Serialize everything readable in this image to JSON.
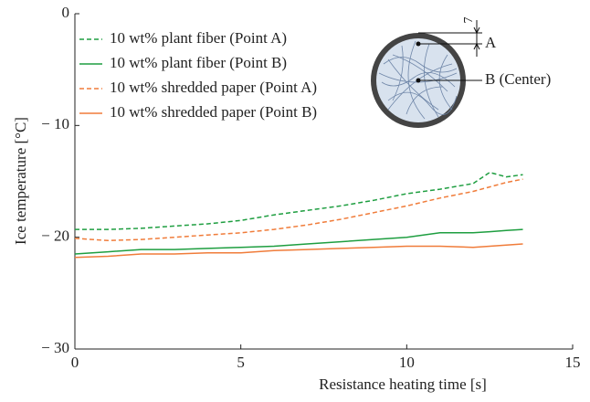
{
  "chart_data": {
    "type": "line",
    "xlabel": "Resistance heating time [s]",
    "ylabel": "Ice temperature [°C]",
    "x": [
      0,
      1,
      2,
      3,
      4,
      5,
      6,
      7,
      8,
      9,
      10,
      11,
      12,
      12.5,
      13,
      13.5
    ],
    "series": [
      {
        "name": "10 wt% plant fiber (Point A)",
        "color": "#1e9e40",
        "dashed": true,
        "values": [
          -19.3,
          -19.3,
          -19.2,
          -19.0,
          -18.8,
          -18.5,
          -18.0,
          -17.6,
          -17.2,
          -16.7,
          -16.1,
          -15.7,
          -15.2,
          -14.2,
          -14.6,
          -14.4
        ]
      },
      {
        "name": "10 wt% plant fiber (Point B)",
        "color": "#1e9e40",
        "dashed": false,
        "values": [
          -21.5,
          -21.3,
          -21.1,
          -21.1,
          -21.0,
          -20.9,
          -20.8,
          -20.6,
          -20.4,
          -20.2,
          -20.0,
          -19.6,
          -19.6,
          -19.5,
          -19.4,
          -19.3
        ]
      },
      {
        "name": "10 wt% shredded paper (Point A)",
        "color": "#f07c3a",
        "dashed": true,
        "values": [
          -20.1,
          -20.3,
          -20.2,
          -20.0,
          -19.8,
          -19.6,
          -19.3,
          -18.9,
          -18.4,
          -17.8,
          -17.2,
          -16.5,
          -15.9,
          -15.5,
          -15.1,
          -14.8
        ]
      },
      {
        "name": "10 wt% shredded paper (Point B)",
        "color": "#f07c3a",
        "dashed": false,
        "values": [
          -21.8,
          -21.7,
          -21.5,
          -21.5,
          -21.4,
          -21.4,
          -21.2,
          -21.1,
          -21.0,
          -20.9,
          -20.8,
          -20.8,
          -20.9,
          -20.8,
          -20.7,
          -20.6
        ]
      }
    ],
    "xlim": [
      0,
      15
    ],
    "xticks": [
      0,
      5,
      10,
      15
    ],
    "ylim": [
      -30,
      0
    ],
    "yticks": [
      {
        "value": -30,
        "label": "− 30"
      },
      {
        "value": -20,
        "label": "− 20"
      },
      {
        "value": -10,
        "label": "− 10"
      },
      0
    ],
    "legend": "upper left",
    "inset": {
      "point_a": "A",
      "point_b": "B (Center)",
      "depth": "7"
    }
  }
}
